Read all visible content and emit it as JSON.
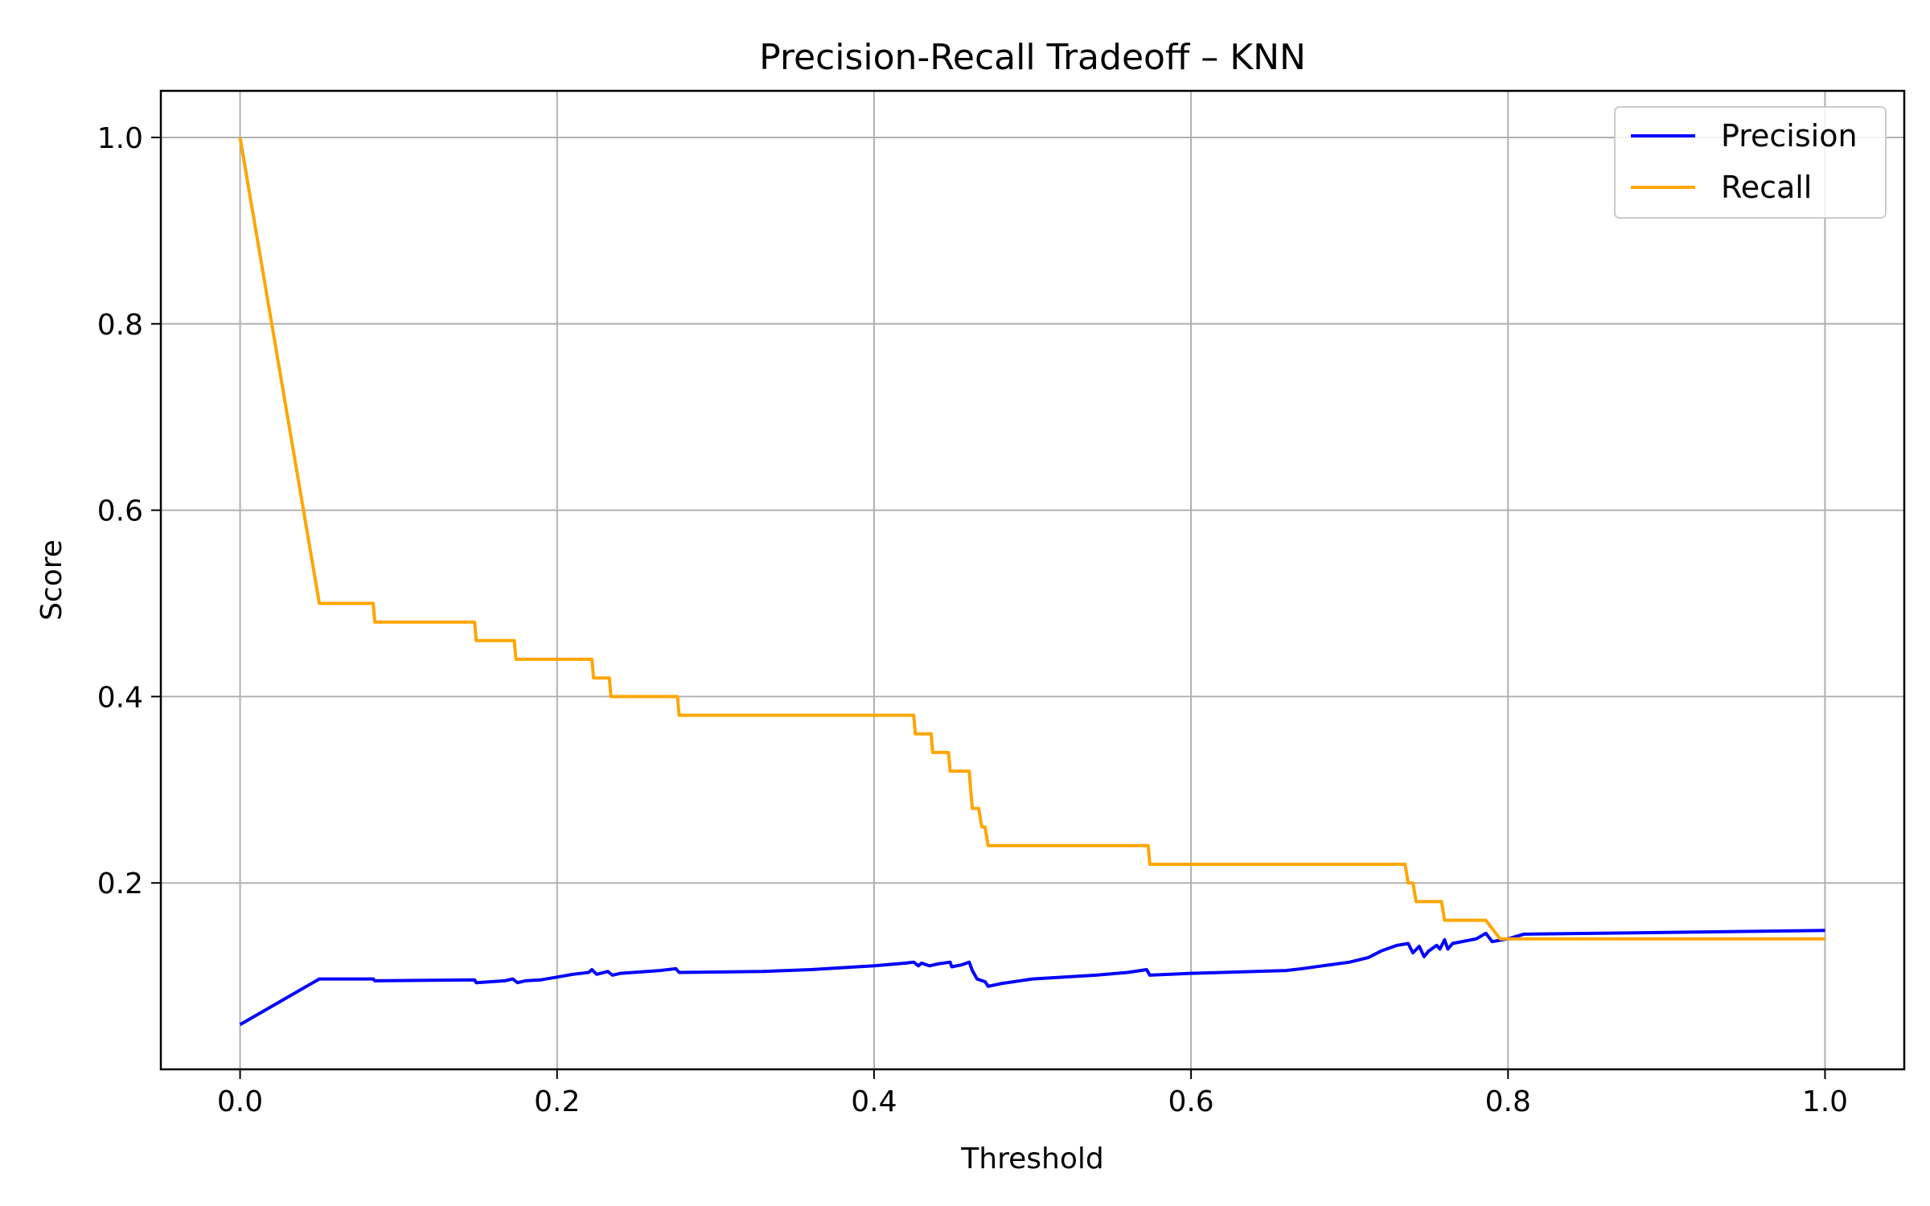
{
  "chart_data": {
    "type": "line",
    "title": "Precision-Recall Tradeoff – KNN",
    "xlabel": "Threshold",
    "ylabel": "Score",
    "xlim": [
      -0.05,
      1.05
    ],
    "ylim": [
      0.0,
      1.05
    ],
    "xticks": [
      "0.0",
      "0.2",
      "0.4",
      "0.6",
      "0.8",
      "1.0"
    ],
    "yticks": [
      "0.2",
      "0.4",
      "0.6",
      "0.8",
      "1.0"
    ],
    "grid": true,
    "legend_position": "top-right",
    "series": [
      {
        "name": "Precision",
        "color": "#0000ff",
        "x": [
          0.0,
          0.05,
          0.084,
          0.085,
          0.148,
          0.149,
          0.167,
          0.172,
          0.175,
          0.18,
          0.19,
          0.2,
          0.21,
          0.22,
          0.222,
          0.225,
          0.232,
          0.235,
          0.24,
          0.265,
          0.275,
          0.277,
          0.33,
          0.36,
          0.4,
          0.42,
          0.425,
          0.428,
          0.43,
          0.435,
          0.44,
          0.448,
          0.449,
          0.455,
          0.46,
          0.462,
          0.465,
          0.47,
          0.472,
          0.48,
          0.5,
          0.52,
          0.54,
          0.56,
          0.572,
          0.574,
          0.6,
          0.62,
          0.66,
          0.67,
          0.7,
          0.712,
          0.72,
          0.73,
          0.737,
          0.74,
          0.744,
          0.747,
          0.75,
          0.755,
          0.757,
          0.76,
          0.762,
          0.765,
          0.78,
          0.786,
          0.79,
          0.8,
          0.81,
          1.0
        ],
        "y": [
          0.048,
          0.097,
          0.097,
          0.095,
          0.096,
          0.093,
          0.095,
          0.097,
          0.093,
          0.095,
          0.096,
          0.099,
          0.102,
          0.104,
          0.107,
          0.102,
          0.105,
          0.101,
          0.103,
          0.106,
          0.108,
          0.104,
          0.105,
          0.107,
          0.111,
          0.114,
          0.115,
          0.111,
          0.114,
          0.111,
          0.113,
          0.115,
          0.11,
          0.112,
          0.115,
          0.106,
          0.097,
          0.094,
          0.089,
          0.092,
          0.097,
          0.099,
          0.101,
          0.104,
          0.107,
          0.101,
          0.103,
          0.104,
          0.106,
          0.108,
          0.115,
          0.12,
          0.127,
          0.133,
          0.135,
          0.125,
          0.132,
          0.121,
          0.127,
          0.133,
          0.129,
          0.139,
          0.129,
          0.135,
          0.14,
          0.146,
          0.137,
          0.14,
          0.145,
          0.149
        ]
      },
      {
        "name": "Recall",
        "color": "#ffa500",
        "x": [
          0.0,
          0.05,
          0.084,
          0.085,
          0.148,
          0.149,
          0.173,
          0.174,
          0.222,
          0.223,
          0.233,
          0.234,
          0.276,
          0.277,
          0.425,
          0.426,
          0.436,
          0.437,
          0.447,
          0.448,
          0.46,
          0.462,
          0.466,
          0.468,
          0.47,
          0.472,
          0.573,
          0.574,
          0.735,
          0.737,
          0.74,
          0.742,
          0.758,
          0.76,
          0.786,
          0.795,
          1.0
        ],
        "y": [
          1.0,
          0.5,
          0.5,
          0.48,
          0.48,
          0.46,
          0.46,
          0.44,
          0.44,
          0.42,
          0.42,
          0.4,
          0.4,
          0.38,
          0.38,
          0.36,
          0.36,
          0.34,
          0.34,
          0.32,
          0.32,
          0.28,
          0.28,
          0.26,
          0.26,
          0.24,
          0.24,
          0.22,
          0.22,
          0.2,
          0.2,
          0.18,
          0.18,
          0.16,
          0.16,
          0.14,
          0.14
        ]
      }
    ]
  }
}
